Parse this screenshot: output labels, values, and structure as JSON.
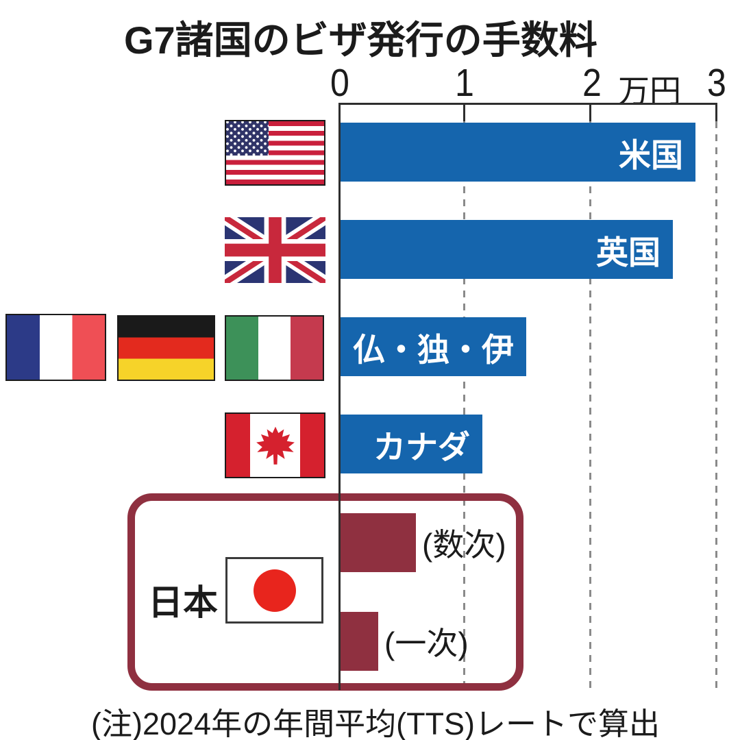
{
  "chart_data": {
    "type": "bar",
    "orientation": "horizontal",
    "title": "G7諸国のビザ発行の手数料",
    "unit_label": "万円",
    "x_ticks": [
      "0",
      "1",
      "2",
      "3"
    ],
    "xlim": [
      0,
      3
    ],
    "grid": "dashed-vertical",
    "bars": [
      {
        "label": "米国",
        "flag": "usa",
        "value": 2.83
      },
      {
        "label": "英国",
        "flag": "uk",
        "value": 2.65
      },
      {
        "label": "仏・独・伊",
        "flag": "france-germany-italy",
        "value": 1.48
      },
      {
        "label": "カナダ",
        "flag": "canada",
        "value": 1.13
      },
      {
        "label": "(数次)",
        "flag": "japan",
        "group": "日本",
        "value": 0.6
      },
      {
        "label": "(一次)",
        "flag": "japan",
        "group": "日本",
        "value": 0.3
      }
    ],
    "japan_group_label": "日本",
    "note": "(注)2024年の年間平均(TTS)レートで算出",
    "colors": {
      "bar_blue": "#1565ad",
      "japan_maroon": "#8f3040"
    }
  }
}
